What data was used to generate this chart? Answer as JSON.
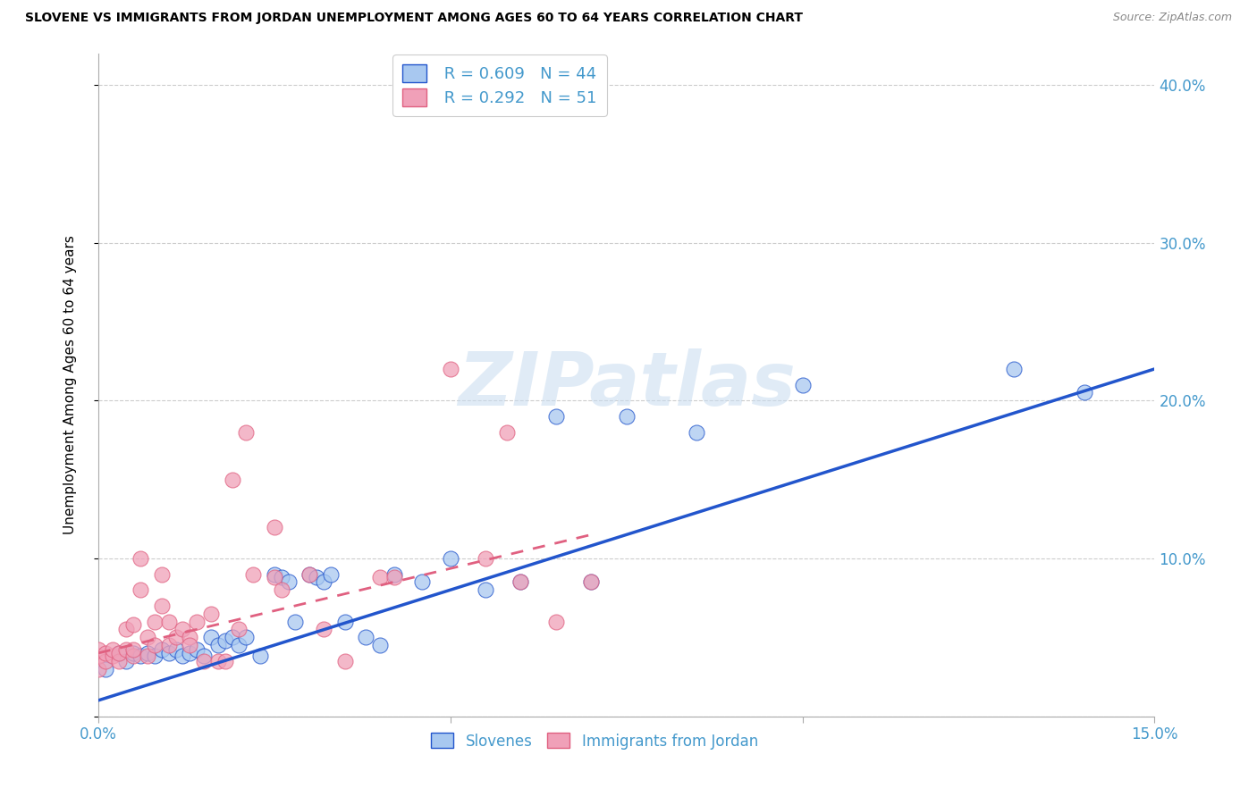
{
  "title": "SLOVENE VS IMMIGRANTS FROM JORDAN UNEMPLOYMENT AMONG AGES 60 TO 64 YEARS CORRELATION CHART",
  "source": "Source: ZipAtlas.com",
  "ylabel": "Unemployment Among Ages 60 to 64 years",
  "xlim": [
    0.0,
    0.15
  ],
  "ylim": [
    0.0,
    0.42
  ],
  "xticks": [
    0.0,
    0.05,
    0.1,
    0.15
  ],
  "yticks": [
    0.0,
    0.1,
    0.2,
    0.3,
    0.4
  ],
  "xtick_labels": [
    "0.0%",
    "",
    "",
    "15.0%"
  ],
  "ytick_labels_right": [
    "",
    "10.0%",
    "20.0%",
    "30.0%",
    "40.0%"
  ],
  "blue_color": "#A8C8F0",
  "pink_color": "#F0A0B8",
  "blue_line_color": "#2255CC",
  "pink_line_color": "#E06080",
  "grid_color": "#CCCCCC",
  "text_color": "#4499CC",
  "watermark_text": "ZIPatlas",
  "legend_R_blue": "0.609",
  "legend_N_blue": "44",
  "legend_R_pink": "0.292",
  "legend_N_pink": "51",
  "slovene_label": "Slovenes",
  "jordan_label": "Immigrants from Jordan",
  "blue_line_x0": 0.0,
  "blue_line_y0": 0.01,
  "blue_line_x1": 0.15,
  "blue_line_y1": 0.22,
  "pink_line_x0": 0.0,
  "pink_line_y0": 0.04,
  "pink_line_x1": 0.07,
  "pink_line_y1": 0.115,
  "blue_x": [
    0.001,
    0.003,
    0.004,
    0.005,
    0.006,
    0.007,
    0.008,
    0.009,
    0.01,
    0.011,
    0.012,
    0.013,
    0.014,
    0.015,
    0.016,
    0.017,
    0.018,
    0.019,
    0.02,
    0.021,
    0.023,
    0.025,
    0.026,
    0.027,
    0.028,
    0.03,
    0.031,
    0.032,
    0.033,
    0.035,
    0.038,
    0.04,
    0.042,
    0.046,
    0.05,
    0.055,
    0.06,
    0.065,
    0.07,
    0.075,
    0.085,
    0.1,
    0.13,
    0.14
  ],
  "blue_y": [
    0.03,
    0.04,
    0.035,
    0.04,
    0.038,
    0.04,
    0.038,
    0.042,
    0.04,
    0.042,
    0.038,
    0.04,
    0.042,
    0.038,
    0.05,
    0.045,
    0.048,
    0.05,
    0.045,
    0.05,
    0.038,
    0.09,
    0.088,
    0.085,
    0.06,
    0.09,
    0.088,
    0.085,
    0.09,
    0.06,
    0.05,
    0.045,
    0.09,
    0.085,
    0.1,
    0.08,
    0.085,
    0.19,
    0.085,
    0.19,
    0.18,
    0.21,
    0.22,
    0.205
  ],
  "pink_x": [
    0.0,
    0.0,
    0.0,
    0.001,
    0.001,
    0.002,
    0.002,
    0.003,
    0.003,
    0.004,
    0.004,
    0.005,
    0.005,
    0.005,
    0.006,
    0.006,
    0.007,
    0.007,
    0.008,
    0.008,
    0.009,
    0.009,
    0.01,
    0.01,
    0.011,
    0.012,
    0.013,
    0.013,
    0.014,
    0.015,
    0.016,
    0.017,
    0.018,
    0.019,
    0.02,
    0.021,
    0.022,
    0.025,
    0.025,
    0.026,
    0.03,
    0.032,
    0.035,
    0.04,
    0.042,
    0.05,
    0.055,
    0.058,
    0.06,
    0.065,
    0.07
  ],
  "pink_y": [
    0.03,
    0.038,
    0.042,
    0.035,
    0.04,
    0.038,
    0.042,
    0.035,
    0.04,
    0.042,
    0.055,
    0.038,
    0.042,
    0.058,
    0.08,
    0.1,
    0.05,
    0.038,
    0.045,
    0.06,
    0.07,
    0.09,
    0.045,
    0.06,
    0.05,
    0.055,
    0.05,
    0.045,
    0.06,
    0.035,
    0.065,
    0.035,
    0.035,
    0.15,
    0.055,
    0.18,
    0.09,
    0.088,
    0.12,
    0.08,
    0.09,
    0.055,
    0.035,
    0.088,
    0.088,
    0.22,
    0.1,
    0.18,
    0.085,
    0.06,
    0.085
  ]
}
